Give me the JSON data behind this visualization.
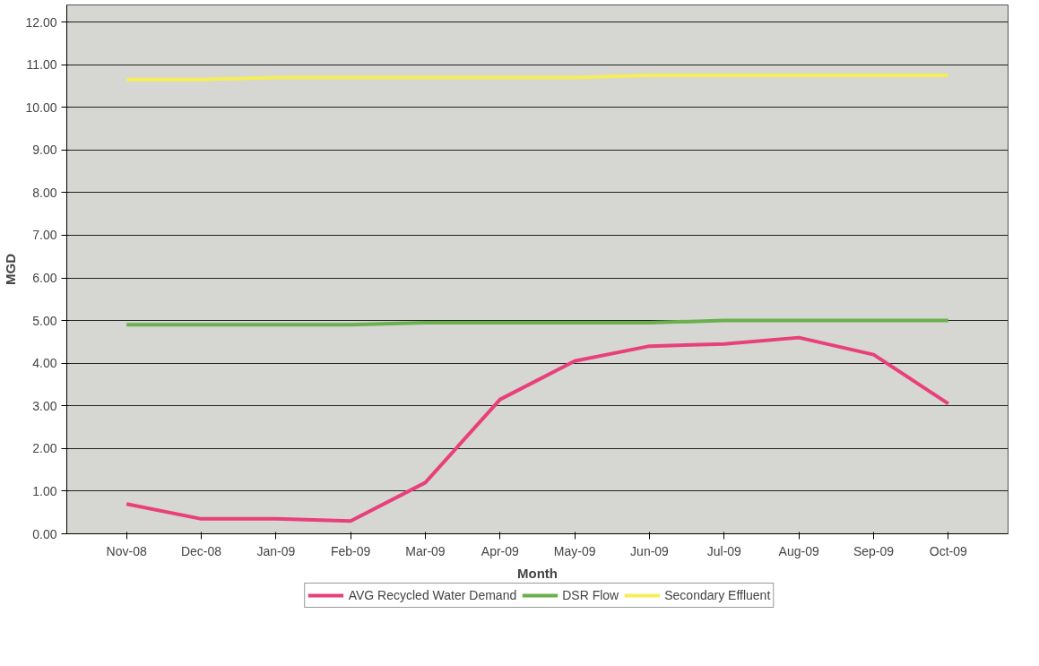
{
  "chart_data": {
    "type": "line",
    "xlabel": "Month",
    "ylabel": "MGD",
    "categories": [
      "Nov-08",
      "Dec-08",
      "Jan-09",
      "Feb-09",
      "Mar-09",
      "Apr-09",
      "May-09",
      "Jun-09",
      "Jul-09",
      "Aug-09",
      "Sep-09",
      "Oct-09"
    ],
    "series": [
      {
        "name": "AVG Recycled Water Demand",
        "color": "#e8407a",
        "values": [
          0.7,
          0.35,
          0.35,
          0.3,
          1.2,
          3.15,
          4.05,
          4.4,
          4.45,
          4.6,
          4.2,
          3.05
        ]
      },
      {
        "name": "DSR Flow",
        "color": "#6ab04c",
        "values": [
          4.9,
          4.9,
          4.9,
          4.9,
          4.95,
          4.95,
          4.95,
          4.95,
          5.0,
          5.0,
          5.0,
          5.0
        ]
      },
      {
        "name": "Secondary Effluent",
        "color": "#f5ee5a",
        "values": [
          10.65,
          10.65,
          10.7,
          10.7,
          10.7,
          10.7,
          10.7,
          10.75,
          10.75,
          10.75,
          10.75,
          10.75
        ]
      }
    ],
    "ylim": [
      0,
      12.4
    ],
    "yticks": [
      {
        "value": 0,
        "label": "0.00"
      },
      {
        "value": 1,
        "label": "1.00"
      },
      {
        "value": 2,
        "label": "2.00"
      },
      {
        "value": 3,
        "label": "3.00"
      },
      {
        "value": 4,
        "label": "4.00"
      },
      {
        "value": 5,
        "label": "5.00"
      },
      {
        "value": 6,
        "label": "6.00"
      },
      {
        "value": 7,
        "label": "7.00"
      },
      {
        "value": 8,
        "label": "8.00"
      },
      {
        "value": 9,
        "label": "9.00"
      },
      {
        "value": 10,
        "label": "10.00"
      },
      {
        "value": 11,
        "label": "11.00"
      },
      {
        "value": 12,
        "label": "12.00"
      }
    ],
    "grid": "y",
    "legend": "bottom",
    "marker": "none",
    "line_style": "solid"
  }
}
